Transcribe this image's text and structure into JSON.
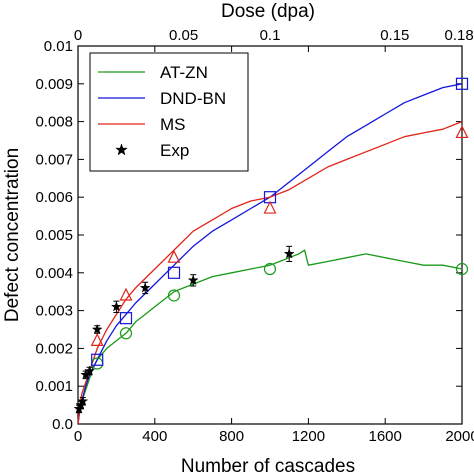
{
  "chart_data": {
    "type": "line",
    "xlabel": "Number of cascades",
    "ylabel": "Defect concentration",
    "top_xlabel": "Dose (dpa)",
    "xlim": [
      0,
      2000
    ],
    "ylim": [
      0,
      0.01
    ],
    "x_ticks": [
      0,
      400,
      800,
      1200,
      1600,
      2000
    ],
    "x_tick_labels": [
      "0",
      "400",
      "800",
      "1200",
      "1600",
      "2000"
    ],
    "y_ticks": [
      0,
      0.001,
      0.002,
      0.003,
      0.004,
      0.005,
      0.006,
      0.007,
      0.008,
      0.009,
      0.01
    ],
    "y_tick_labels": [
      "0.0",
      "0.001",
      "0.002",
      "0.003",
      "0.004",
      "0.005",
      "0.006",
      "0.007",
      "0.008",
      "0.009",
      "0.01"
    ],
    "top_ticks_x": [
      0,
      550,
      1000,
      1650,
      1985
    ],
    "top_tick_labels": [
      "0",
      "0.05",
      "0.1",
      "0.15",
      "0.18"
    ],
    "legend_position": "top-left",
    "grid": false,
    "series": [
      {
        "name": "AT-ZN",
        "color": "#1a9a1a",
        "marker": "circle",
        "x": [
          0,
          10,
          20,
          40,
          60,
          80,
          100,
          150,
          200,
          250,
          300,
          350,
          400,
          450,
          500,
          550,
          600,
          700,
          800,
          900,
          1000,
          1050,
          1100,
          1150,
          1180,
          1200,
          1300,
          1400,
          1500,
          1600,
          1700,
          1800,
          1900,
          2000
        ],
        "y": [
          0.0,
          0.0004,
          0.0006,
          0.0009,
          0.0012,
          0.0015,
          0.0017,
          0.002,
          0.0022,
          0.0024,
          0.0027,
          0.0029,
          0.0031,
          0.0033,
          0.0035,
          0.0036,
          0.0037,
          0.0039,
          0.004,
          0.0041,
          0.0042,
          0.0043,
          0.0044,
          0.0045,
          0.0046,
          0.0042,
          0.0043,
          0.0044,
          0.0045,
          0.0044,
          0.0043,
          0.0042,
          0.0042,
          0.0041
        ],
        "marker_x": [
          100,
          250,
          500,
          1000,
          2000
        ],
        "marker_y": [
          0.0016,
          0.0024,
          0.0034,
          0.0041,
          0.0041
        ]
      },
      {
        "name": "DND-BN",
        "color": "#1414dc",
        "marker": "square",
        "x": [
          0,
          10,
          20,
          40,
          60,
          80,
          100,
          150,
          200,
          250,
          300,
          400,
          500,
          600,
          700,
          800,
          900,
          1000,
          1100,
          1200,
          1300,
          1400,
          1500,
          1600,
          1700,
          1800,
          1900,
          2000
        ],
        "y": [
          0.0,
          0.0004,
          0.0006,
          0.001,
          0.0013,
          0.0015,
          0.0017,
          0.0022,
          0.0026,
          0.0029,
          0.0032,
          0.0037,
          0.0042,
          0.0047,
          0.0051,
          0.0054,
          0.0057,
          0.006,
          0.0064,
          0.0068,
          0.0072,
          0.0076,
          0.0079,
          0.0082,
          0.0085,
          0.0087,
          0.0089,
          0.009
        ],
        "marker_x": [
          100,
          250,
          500,
          1000,
          2000
        ],
        "marker_y": [
          0.0017,
          0.0028,
          0.004,
          0.006,
          0.009
        ]
      },
      {
        "name": "MS",
        "color": "#e0241a",
        "marker": "triangle",
        "x": [
          0,
          10,
          20,
          40,
          60,
          80,
          100,
          150,
          200,
          250,
          300,
          400,
          500,
          600,
          700,
          800,
          900,
          1000,
          1100,
          1200,
          1300,
          1400,
          1500,
          1600,
          1700,
          1800,
          1900,
          2000
        ],
        "y": [
          0.0,
          0.0005,
          0.0008,
          0.0011,
          0.0014,
          0.0017,
          0.002,
          0.0025,
          0.0029,
          0.0033,
          0.0036,
          0.0041,
          0.0046,
          0.0051,
          0.0054,
          0.0057,
          0.0059,
          0.006,
          0.0062,
          0.0065,
          0.0068,
          0.007,
          0.0072,
          0.0074,
          0.0076,
          0.0077,
          0.0078,
          0.008
        ],
        "marker_x": [
          100,
          250,
          500,
          1000,
          2000
        ],
        "marker_y": [
          0.0022,
          0.0034,
          0.0044,
          0.0057,
          0.0077
        ]
      },
      {
        "name": "Exp",
        "color": "#000000",
        "marker": "star",
        "x": [
          5,
          15,
          25,
          40,
          60,
          100,
          200,
          350,
          600,
          1100
        ],
        "y": [
          0.0004,
          0.0005,
          0.0006,
          0.0013,
          0.0014,
          0.0025,
          0.0031,
          0.0036,
          0.0038,
          0.0045
        ],
        "err": [
          0.0001,
          0.0001,
          0.0001,
          0.0001,
          0.0001,
          0.0001,
          0.00015,
          0.00015,
          0.00015,
          0.0002
        ]
      }
    ]
  }
}
